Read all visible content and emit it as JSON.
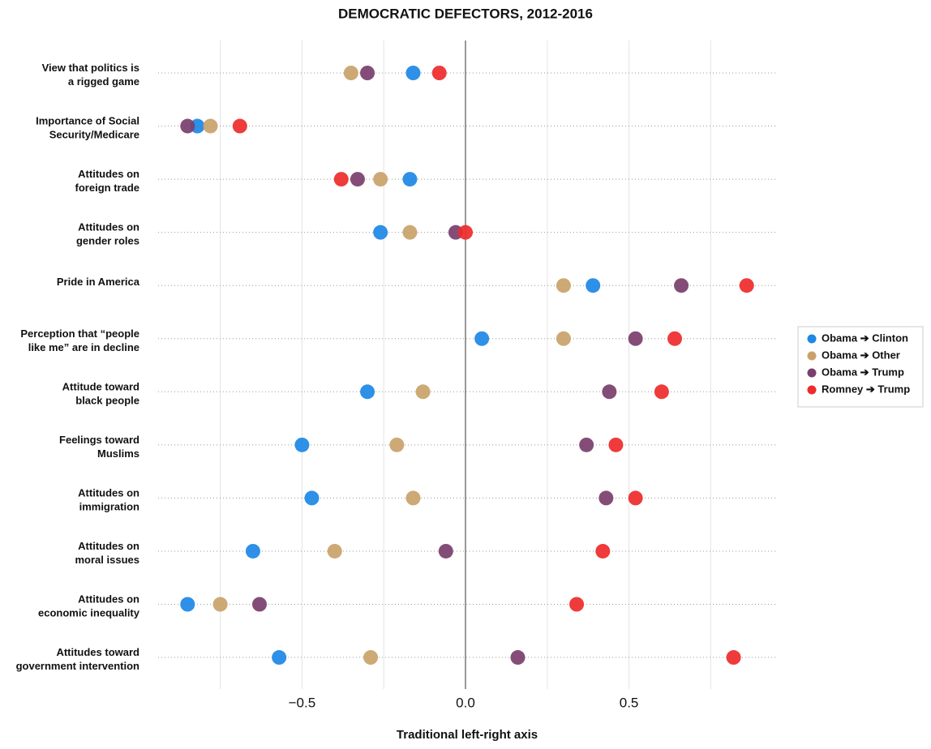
{
  "chart_data": {
    "type": "dot",
    "title": "DEMOCRATIC DEFECTORS, 2012-2016",
    "xlabel": "Traditional left-right axis",
    "categories": [
      [
        "View that politics is",
        "a rigged game"
      ],
      [
        "Importance of Social",
        "Security/Medicare"
      ],
      [
        "Attitudes on",
        "foreign trade"
      ],
      [
        "Attitudes on",
        "gender roles"
      ],
      [
        "Pride in America"
      ],
      [
        "Perception that “people",
        "like me” are in decline"
      ],
      [
        "Attitude toward",
        "black people"
      ],
      [
        "Feelings toward",
        "Muslims"
      ],
      [
        "Attitudes on",
        "immigration"
      ],
      [
        "Attitudes on",
        "moral issues"
      ],
      [
        "Attitudes on",
        "economic inequality"
      ],
      [
        "Attitudes toward",
        "government intervention"
      ]
    ],
    "series": [
      {
        "name": "Obama ➔ Clinton",
        "color": "#1e88e5",
        "values": [
          -0.16,
          -0.82,
          -0.17,
          -0.26,
          0.39,
          0.05,
          -0.3,
          -0.5,
          -0.47,
          -0.65,
          -0.85,
          -0.57
        ]
      },
      {
        "name": "Obama ➔ Other",
        "color": "#c9a26b",
        "values": [
          -0.35,
          -0.78,
          -0.26,
          -0.17,
          0.3,
          0.3,
          -0.13,
          -0.21,
          -0.16,
          -0.4,
          -0.75,
          -0.29
        ]
      },
      {
        "name": "Obama ➔ Trump",
        "color": "#7b3f6e",
        "values": [
          -0.3,
          -0.85,
          -0.33,
          -0.03,
          0.66,
          0.52,
          0.44,
          0.37,
          0.43,
          -0.06,
          -0.63,
          0.16
        ]
      },
      {
        "name": "Romney ➔ Trump",
        "color": "#ee2c2c",
        "values": [
          -0.08,
          -0.69,
          -0.38,
          0.0,
          0.86,
          0.64,
          0.6,
          0.46,
          0.52,
          0.42,
          0.34,
          0.82
        ]
      }
    ],
    "xlim": [
      -0.94,
      0.95
    ],
    "xticks": [
      {
        "value": -0.5,
        "label": "−0.5"
      },
      {
        "value": 0,
        "label": "0.0"
      },
      0.5
    ],
    "xgrid_minor": [
      -0.75,
      -0.25,
      0.25,
      0.75
    ],
    "legend": "right"
  }
}
